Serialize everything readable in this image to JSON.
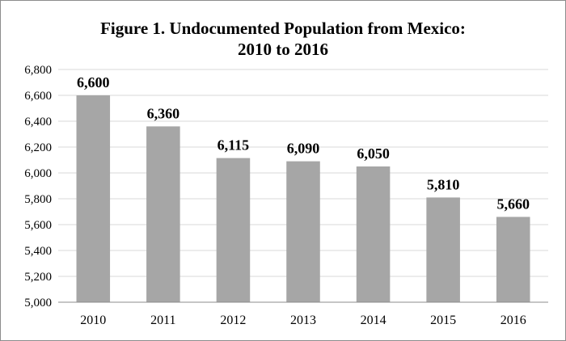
{
  "chart_data": {
    "type": "bar",
    "title": {
      "line1": "Figure 1. Undocumented  Population  from Mexico:",
      "line2": "2010 to 2016"
    },
    "categories": [
      "2010",
      "2011",
      "2012",
      "2013",
      "2014",
      "2015",
      "2016"
    ],
    "values": [
      6600,
      6360,
      6115,
      6090,
      6050,
      5810,
      5660
    ],
    "value_labels": [
      "6,600",
      "6,360",
      "6,115",
      "6,090",
      "6,050",
      "5,810",
      "5,660"
    ],
    "xlabel": "",
    "ylabel": "",
    "ylim": [
      5000,
      6800
    ],
    "yticks": [
      5000,
      5200,
      5400,
      5600,
      5800,
      6000,
      6200,
      6400,
      6600,
      6800
    ],
    "ytick_labels": [
      "5,000",
      "5,200",
      "5,400",
      "5,600",
      "5,800",
      "6,000",
      "6,200",
      "6,400",
      "6,600",
      "6,800"
    ],
    "grid": true,
    "legend": "none",
    "colors": {
      "bar": "#a6a6a6",
      "grid": "#d9d9d9",
      "axis": "#8c8c8c"
    }
  }
}
